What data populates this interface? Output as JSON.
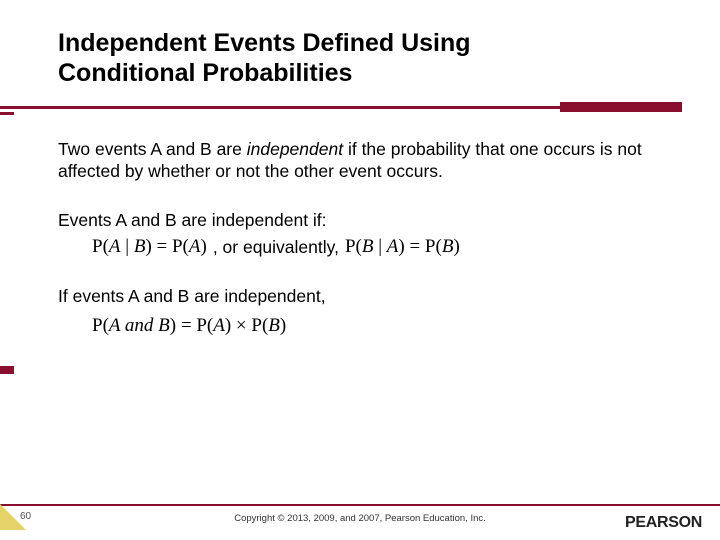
{
  "colors": {
    "accent": "#8a0f2e",
    "corner": "#e5d36a",
    "text": "#000000",
    "background": "#ffffff"
  },
  "title": "Independent Events Defined Using Conditional Probabilities",
  "paragraph1_pre": "Two events A and B are ",
  "paragraph1_em": "independent",
  "paragraph1_post": " if the probability that one occurs is not affected by whether or not the other event occurs.",
  "paragraph2": "Events A and B are independent if:",
  "formula1": "P(A | B) = P(A)",
  "connector": ", or equivalently,",
  "formula2": "P(B | A) = P(B)",
  "paragraph3": "If events A and B are independent,",
  "formula3_lhs": "P(A and B)",
  "formula3_eq": " = ",
  "formula3_rhs": "P(A) × P(B)",
  "page_number": "60",
  "copyright": "Copyright © 2013, 2009, and 2007, Pearson Education, Inc.",
  "logo": "PEARSON"
}
